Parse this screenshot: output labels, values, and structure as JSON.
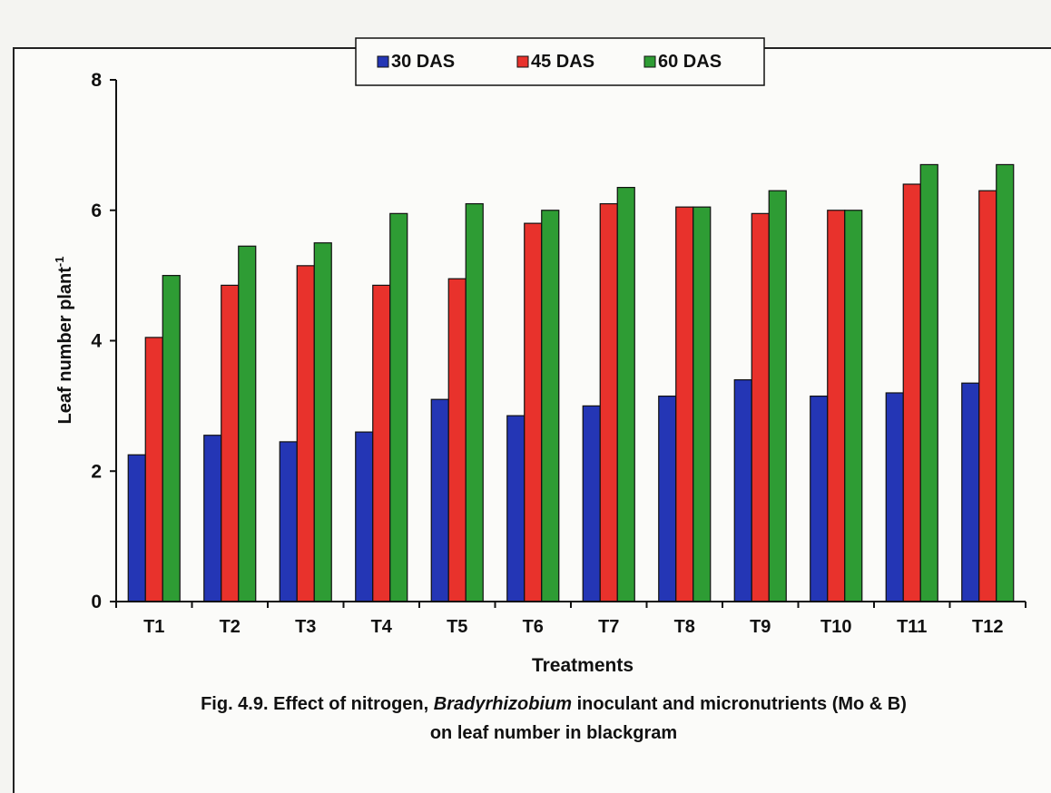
{
  "chart_data": {
    "type": "bar",
    "categories": [
      "T1",
      "T2",
      "T3",
      "T4",
      "T5",
      "T6",
      "T7",
      "T8",
      "T9",
      "T10",
      "T11",
      "T12"
    ],
    "series": [
      {
        "name": "30 DAS",
        "color": "#2436b5",
        "values": [
          2.25,
          2.55,
          2.45,
          2.6,
          3.1,
          2.85,
          3.0,
          3.15,
          3.4,
          3.15,
          3.2,
          3.35
        ]
      },
      {
        "name": "45 DAS",
        "color": "#e8322c",
        "values": [
          4.05,
          4.85,
          5.15,
          4.85,
          4.95,
          5.8,
          6.1,
          6.05,
          5.95,
          6.0,
          6.4,
          6.3
        ]
      },
      {
        "name": "60 DAS",
        "color": "#2e9c34",
        "values": [
          5.0,
          5.45,
          5.5,
          5.95,
          6.1,
          6.0,
          6.35,
          6.05,
          6.3,
          6.0,
          6.7,
          6.7
        ]
      }
    ],
    "xlabel": "Treatments",
    "ylabel": "Leaf number plant",
    "ylabel_superscript": "-1",
    "ylim": [
      0,
      8
    ],
    "yticks": [
      "0",
      "2",
      "4",
      "6",
      "8"
    ],
    "legend_position": "top-center",
    "grid": false
  },
  "caption": {
    "line1_prefix": "Fig. 4.9. Effect of nitrogen, ",
    "line1_italic": "Bradyrhizobium",
    "line1_suffix": " inoculant and micronutrients (Mo & B)",
    "line2": "on leaf number in blackgram"
  }
}
